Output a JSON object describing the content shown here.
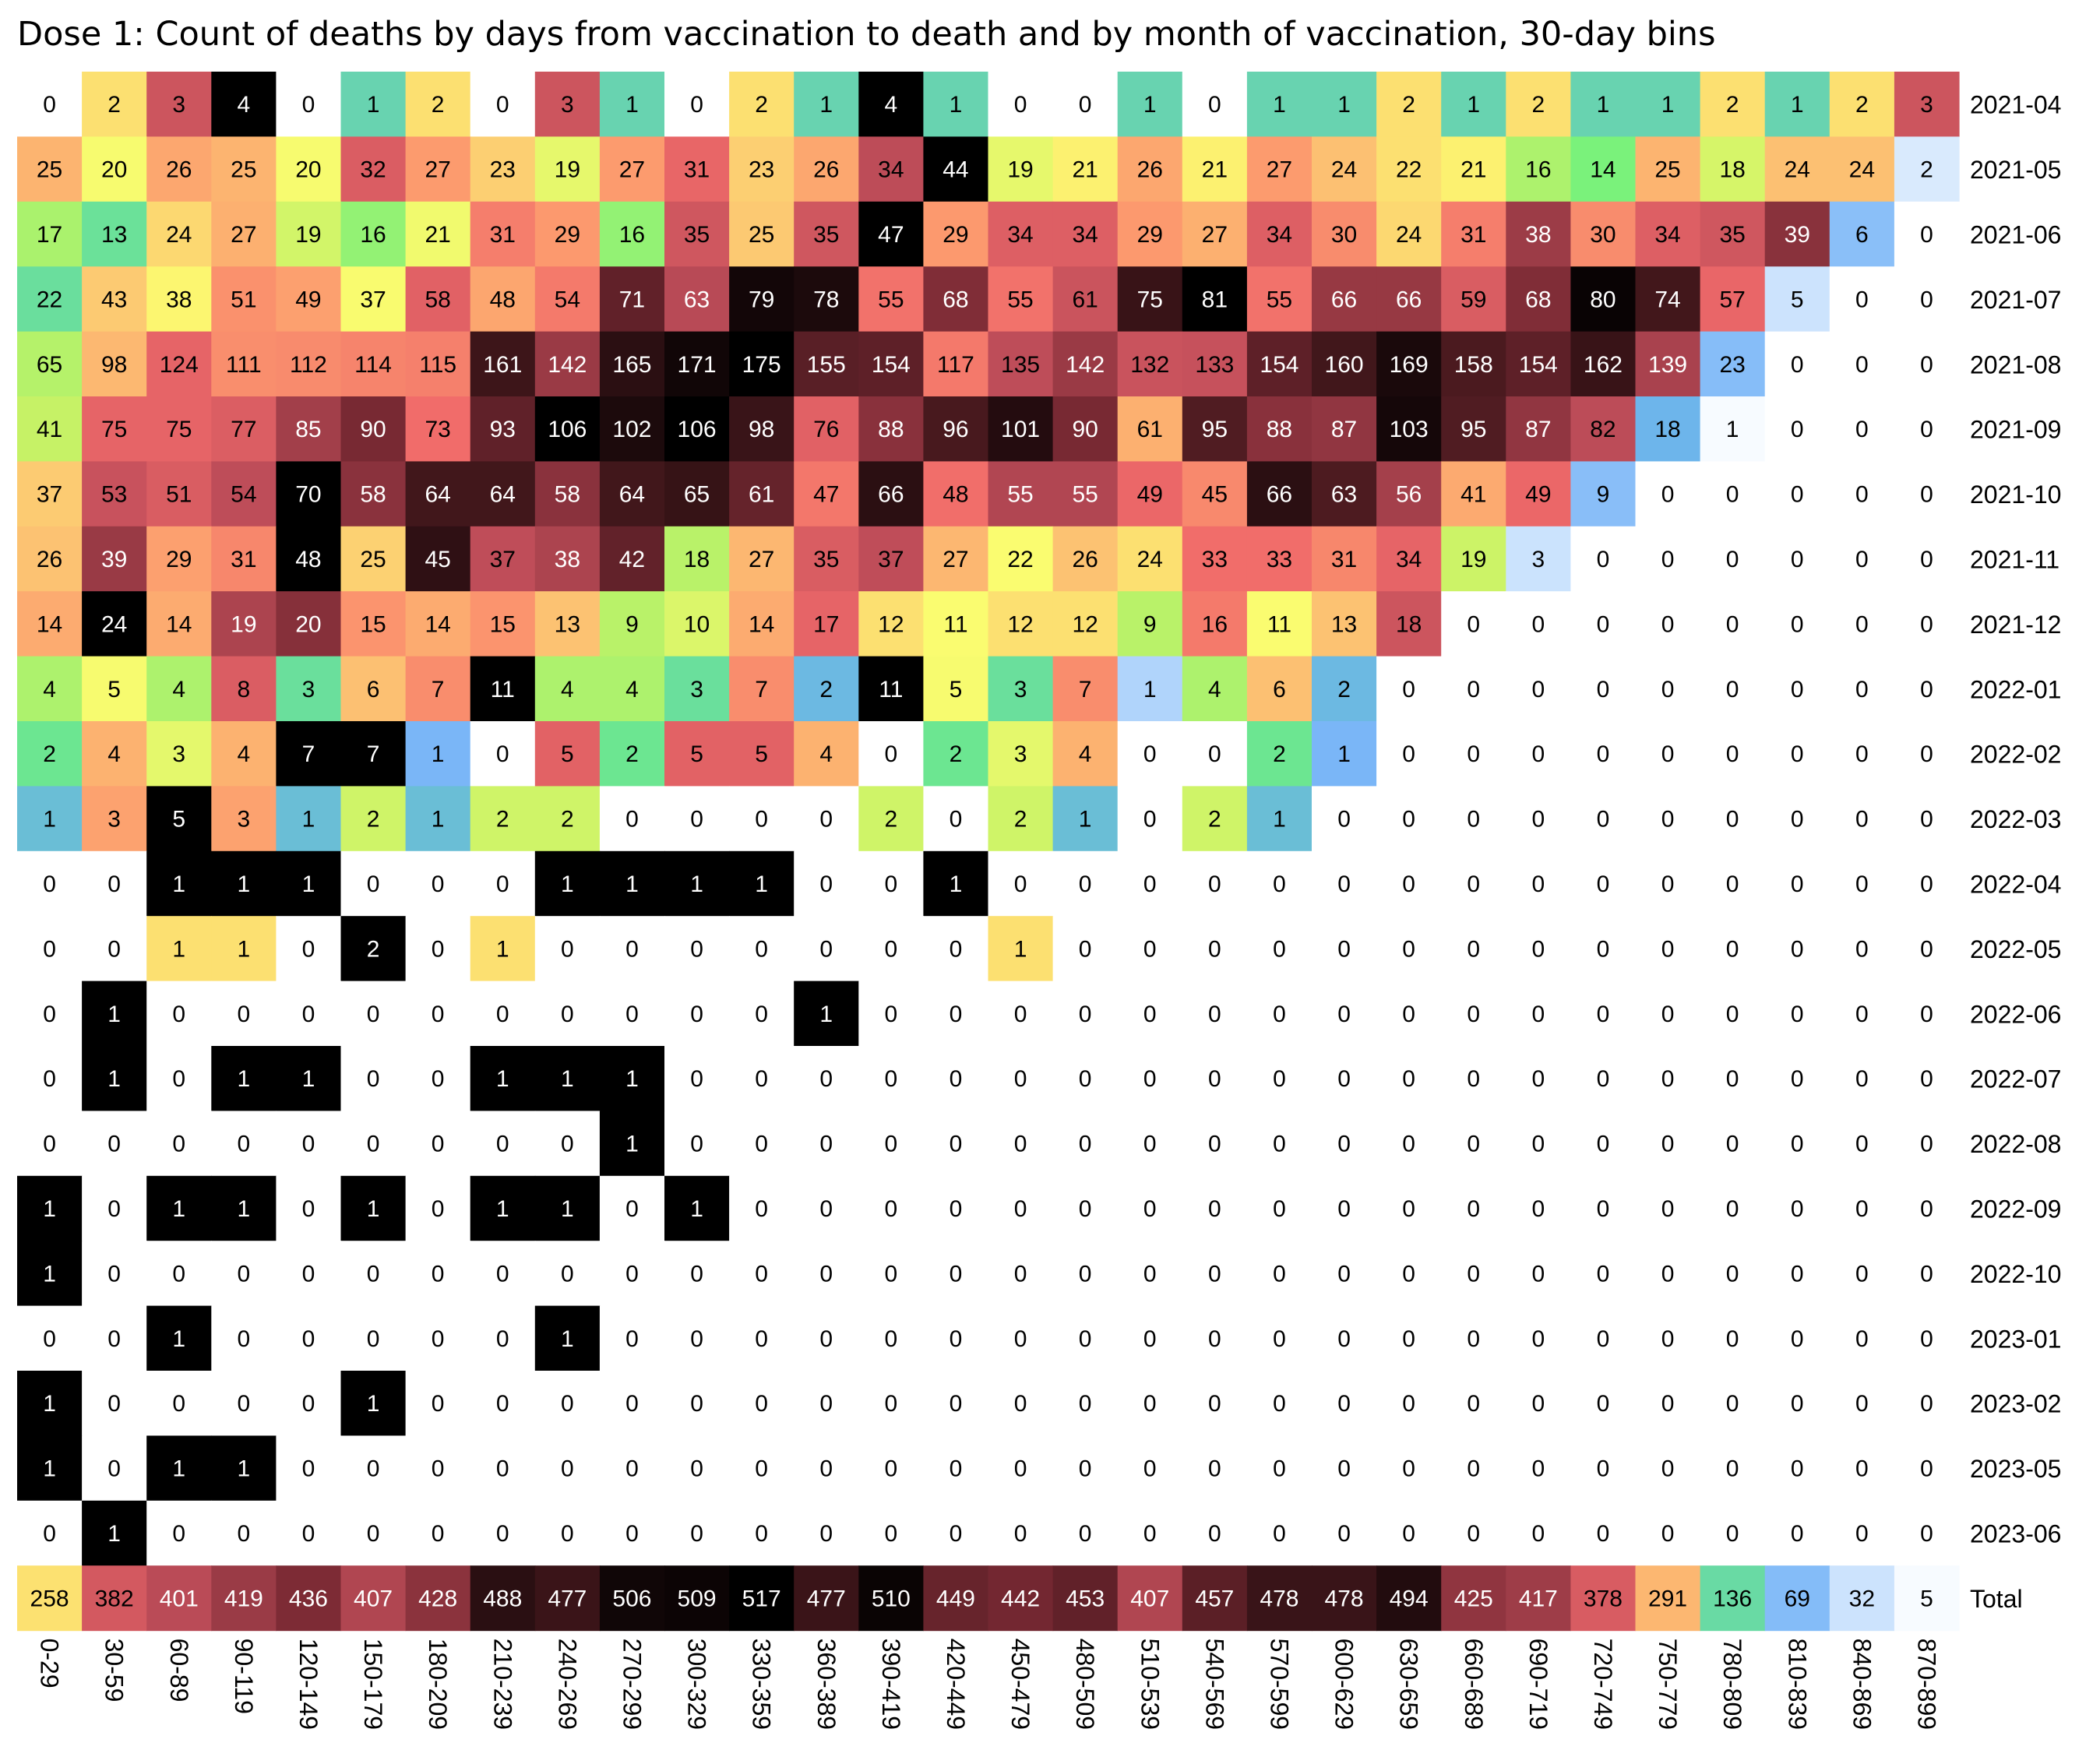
{
  "chart_data": {
    "type": "heatmap",
    "title": "Dose 1: Count of deaths by days from vaccination to death and by month of vaccination, 30-day bins",
    "x_categories": [
      "0-29",
      "30-59",
      "60-89",
      "90-119",
      "120-149",
      "150-179",
      "180-209",
      "210-239",
      "240-269",
      "270-299",
      "300-329",
      "330-359",
      "360-389",
      "390-419",
      "420-449",
      "450-479",
      "480-509",
      "510-539",
      "540-569",
      "570-599",
      "600-629",
      "630-659",
      "660-689",
      "690-719",
      "720-749",
      "750-779",
      "780-809",
      "810-839",
      "840-869",
      "870-899"
    ],
    "y_categories": [
      "2021-04",
      "2021-05",
      "2021-06",
      "2021-07",
      "2021-08",
      "2021-09",
      "2021-10",
      "2021-11",
      "2021-12",
      "2022-01",
      "2022-02",
      "2022-03",
      "2022-04",
      "2022-05",
      "2022-06",
      "2022-07",
      "2022-08",
      "2022-09",
      "2022-10",
      "2023-01",
      "2023-02",
      "2023-05",
      "2023-06",
      "Total"
    ],
    "color_scale": "per-row: white (0) - light blue - blue - teal - green - yellow - orange - red - dark red - black (row max)",
    "values": [
      [
        0,
        2,
        3,
        4,
        0,
        1,
        2,
        0,
        3,
        1,
        0,
        2,
        1,
        4,
        1,
        0,
        0,
        1,
        0,
        1,
        1,
        2,
        1,
        2,
        1,
        1,
        2,
        1,
        2,
        3
      ],
      [
        25,
        20,
        26,
        25,
        20,
        32,
        27,
        23,
        19,
        27,
        31,
        23,
        26,
        34,
        44,
        19,
        21,
        26,
        21,
        27,
        24,
        22,
        21,
        16,
        14,
        25,
        18,
        24,
        24,
        2
      ],
      [
        17,
        13,
        24,
        27,
        19,
        16,
        21,
        31,
        29,
        16,
        35,
        25,
        35,
        47,
        29,
        34,
        34,
        29,
        27,
        34,
        30,
        24,
        31,
        38,
        30,
        34,
        35,
        39,
        6,
        0
      ],
      [
        22,
        43,
        38,
        51,
        49,
        37,
        58,
        48,
        54,
        71,
        63,
        79,
        78,
        55,
        68,
        55,
        61,
        75,
        81,
        55,
        66,
        66,
        59,
        68,
        80,
        74,
        57,
        5,
        0,
        0
      ],
      [
        65,
        98,
        124,
        111,
        112,
        114,
        115,
        161,
        142,
        165,
        171,
        175,
        155,
        154,
        117,
        135,
        142,
        132,
        133,
        154,
        160,
        169,
        158,
        154,
        162,
        139,
        23,
        0,
        0,
        0
      ],
      [
        41,
        75,
        75,
        77,
        85,
        90,
        73,
        93,
        106,
        102,
        106,
        98,
        76,
        88,
        96,
        101,
        90,
        61,
        95,
        88,
        87,
        103,
        95,
        87,
        82,
        18,
        1,
        0,
        0,
        0
      ],
      [
        37,
        53,
        51,
        54,
        70,
        58,
        64,
        64,
        58,
        64,
        65,
        61,
        47,
        66,
        48,
        55,
        55,
        49,
        45,
        66,
        63,
        56,
        41,
        49,
        9,
        0,
        0,
        0,
        0,
        0
      ],
      [
        26,
        39,
        29,
        31,
        48,
        25,
        45,
        37,
        38,
        42,
        18,
        27,
        35,
        37,
        27,
        22,
        26,
        24,
        33,
        33,
        31,
        34,
        19,
        3,
        0,
        0,
        0,
        0,
        0,
        0
      ],
      [
        14,
        24,
        14,
        19,
        20,
        15,
        14,
        15,
        13,
        9,
        10,
        14,
        17,
        12,
        11,
        12,
        12,
        9,
        16,
        11,
        13,
        18,
        0,
        0,
        0,
        0,
        0,
        0,
        0,
        0
      ],
      [
        4,
        5,
        4,
        8,
        3,
        6,
        7,
        11,
        4,
        4,
        3,
        7,
        2,
        11,
        5,
        3,
        7,
        1,
        4,
        6,
        2,
        0,
        0,
        0,
        0,
        0,
        0,
        0,
        0,
        0
      ],
      [
        2,
        4,
        3,
        4,
        7,
        7,
        1,
        0,
        5,
        2,
        5,
        5,
        4,
        0,
        2,
        3,
        4,
        0,
        0,
        2,
        1,
        0,
        0,
        0,
        0,
        0,
        0,
        0,
        0,
        0
      ],
      [
        1,
        3,
        5,
        3,
        1,
        2,
        1,
        2,
        2,
        0,
        0,
        0,
        0,
        2,
        0,
        2,
        1,
        0,
        2,
        1,
        0,
        0,
        0,
        0,
        0,
        0,
        0,
        0,
        0,
        0
      ],
      [
        0,
        0,
        1,
        1,
        1,
        0,
        0,
        0,
        1,
        1,
        1,
        1,
        0,
        0,
        1,
        0,
        0,
        0,
        0,
        0,
        0,
        0,
        0,
        0,
        0,
        0,
        0,
        0,
        0,
        0
      ],
      [
        0,
        0,
        1,
        1,
        0,
        2,
        0,
        1,
        0,
        0,
        0,
        0,
        0,
        0,
        0,
        1,
        0,
        0,
        0,
        0,
        0,
        0,
        0,
        0,
        0,
        0,
        0,
        0,
        0,
        0
      ],
      [
        0,
        1,
        0,
        0,
        0,
        0,
        0,
        0,
        0,
        0,
        0,
        0,
        1,
        0,
        0,
        0,
        0,
        0,
        0,
        0,
        0,
        0,
        0,
        0,
        0,
        0,
        0,
        0,
        0,
        0
      ],
      [
        0,
        1,
        0,
        1,
        1,
        0,
        0,
        1,
        1,
        1,
        0,
        0,
        0,
        0,
        0,
        0,
        0,
        0,
        0,
        0,
        0,
        0,
        0,
        0,
        0,
        0,
        0,
        0,
        0,
        0
      ],
      [
        0,
        0,
        0,
        0,
        0,
        0,
        0,
        0,
        0,
        1,
        0,
        0,
        0,
        0,
        0,
        0,
        0,
        0,
        0,
        0,
        0,
        0,
        0,
        0,
        0,
        0,
        0,
        0,
        0,
        0
      ],
      [
        1,
        0,
        1,
        1,
        0,
        1,
        0,
        1,
        1,
        0,
        1,
        0,
        0,
        0,
        0,
        0,
        0,
        0,
        0,
        0,
        0,
        0,
        0,
        0,
        0,
        0,
        0,
        0,
        0,
        0
      ],
      [
        1,
        0,
        0,
        0,
        0,
        0,
        0,
        0,
        0,
        0,
        0,
        0,
        0,
        0,
        0,
        0,
        0,
        0,
        0,
        0,
        0,
        0,
        0,
        0,
        0,
        0,
        0,
        0,
        0,
        0
      ],
      [
        0,
        0,
        1,
        0,
        0,
        0,
        0,
        0,
        1,
        0,
        0,
        0,
        0,
        0,
        0,
        0,
        0,
        0,
        0,
        0,
        0,
        0,
        0,
        0,
        0,
        0,
        0,
        0,
        0,
        0
      ],
      [
        1,
        0,
        0,
        0,
        0,
        1,
        0,
        0,
        0,
        0,
        0,
        0,
        0,
        0,
        0,
        0,
        0,
        0,
        0,
        0,
        0,
        0,
        0,
        0,
        0,
        0,
        0,
        0,
        0,
        0
      ],
      [
        1,
        0,
        1,
        1,
        0,
        0,
        0,
        0,
        0,
        0,
        0,
        0,
        0,
        0,
        0,
        0,
        0,
        0,
        0,
        0,
        0,
        0,
        0,
        0,
        0,
        0,
        0,
        0,
        0,
        0
      ],
      [
        0,
        1,
        0,
        0,
        0,
        0,
        0,
        0,
        0,
        0,
        0,
        0,
        0,
        0,
        0,
        0,
        0,
        0,
        0,
        0,
        0,
        0,
        0,
        0,
        0,
        0,
        0,
        0,
        0,
        0
      ],
      [
        258,
        382,
        401,
        419,
        436,
        407,
        428,
        488,
        477,
        506,
        509,
        517,
        477,
        510,
        449,
        442,
        453,
        407,
        457,
        478,
        478,
        494,
        425,
        417,
        378,
        291,
        136,
        69,
        32,
        5
      ]
    ],
    "palette": [
      "#ffffff",
      "#bfdcfc",
      "#6fb0f6",
      "#66c8c0",
      "#6ef27e",
      "#c4f266",
      "#fcfc70",
      "#fcc472",
      "#fc9a6e",
      "#f06a6a",
      "#c04e5a",
      "#7a2a34",
      "#3a1418",
      "#000000"
    ]
  }
}
